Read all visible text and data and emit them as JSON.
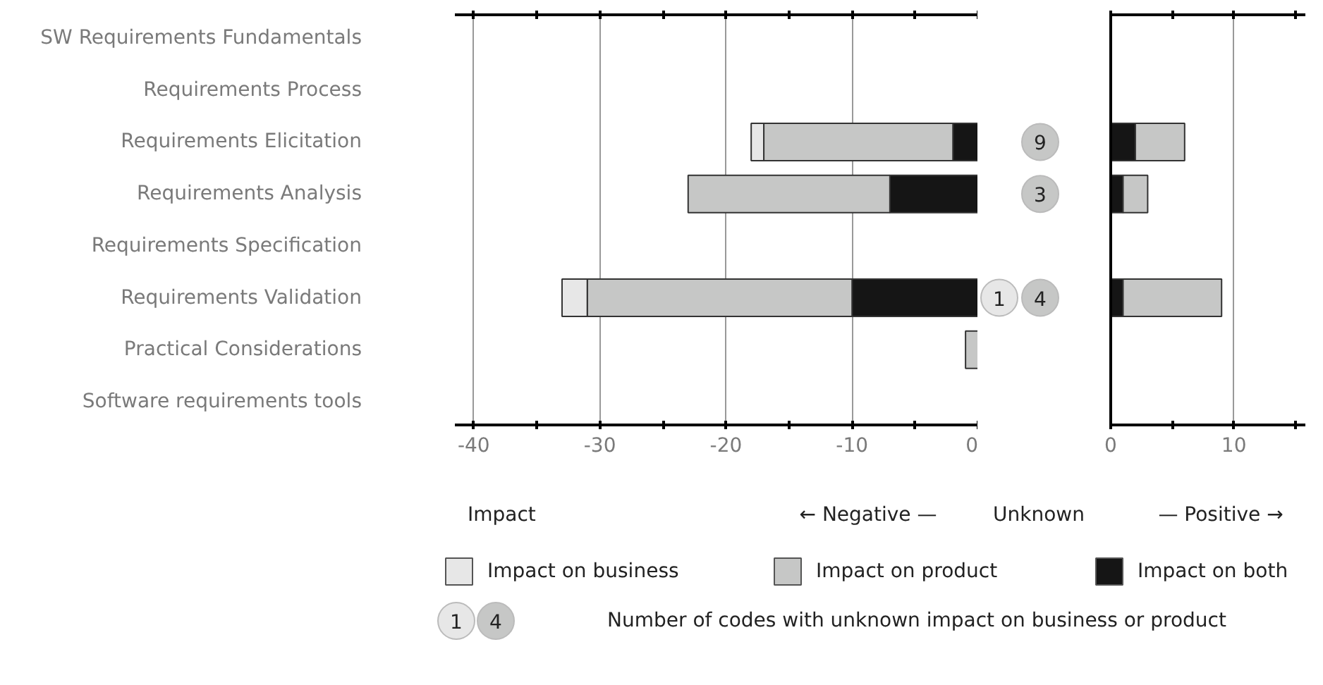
{
  "chart_data": [
    {
      "type": "bar",
      "orientation": "horizontal",
      "stacked": true,
      "categories": [
        "SW Requirements Fundamentals",
        "Requirements Process",
        "Requirements Elicitation",
        "Requirements Analysis",
        "Requirements Specification",
        "Requirements Validation",
        "Practical Considerations",
        "Software requirements tools"
      ],
      "series": [
        {
          "name": "Impact on both",
          "color": "#151515",
          "values": [
            null,
            null,
            -2,
            -7,
            null,
            -10,
            null,
            null
          ]
        },
        {
          "name": "Impact on product",
          "color": "#c6c7c6",
          "values": [
            null,
            null,
            -15,
            -16,
            null,
            -21,
            -1,
            null
          ]
        },
        {
          "name": "Impact on business",
          "color": "#e7e7e7",
          "values": [
            null,
            null,
            -1,
            null,
            null,
            -2,
            null,
            null
          ]
        }
      ],
      "xlim": [
        -41.5,
        0
      ],
      "xticks": [
        -40,
        {
          "value": -35,
          "label": null
        },
        -30,
        {
          "value": -25,
          "label": null
        },
        -20,
        {
          "value": -15,
          "label": null
        },
        -10,
        {
          "value": -5,
          "label": null
        },
        0
      ],
      "grid": "x",
      "legend": "bottom",
      "annotations": [
        "Impact",
        "← Negative —",
        "Unknown",
        "Number of codes with unknown impact on business or product",
        "1",
        "4",
        "9",
        "3",
        "1",
        "4"
      ]
    },
    {
      "type": "bar",
      "orientation": "horizontal",
      "stacked": true,
      "categories": [
        null,
        null,
        null,
        null,
        null,
        null,
        null,
        null
      ],
      "series": [
        {
          "color": "#151515",
          "values": [
            null,
            null,
            2,
            1,
            null,
            1,
            null,
            null
          ]
        },
        {
          "color": "#c6c7c6",
          "values": [
            null,
            null,
            4,
            2,
            null,
            8,
            null,
            null
          ]
        }
      ],
      "xlim": [
        0,
        15.8
      ],
      "xticks": [
        0,
        {
          "value": 5,
          "label": null
        },
        10,
        {
          "value": 15,
          "label": null
        }
      ],
      "grid": "x",
      "tick_labels": "x",
      "annotations": [
        "— Positive →"
      ]
    }
  ]
}
